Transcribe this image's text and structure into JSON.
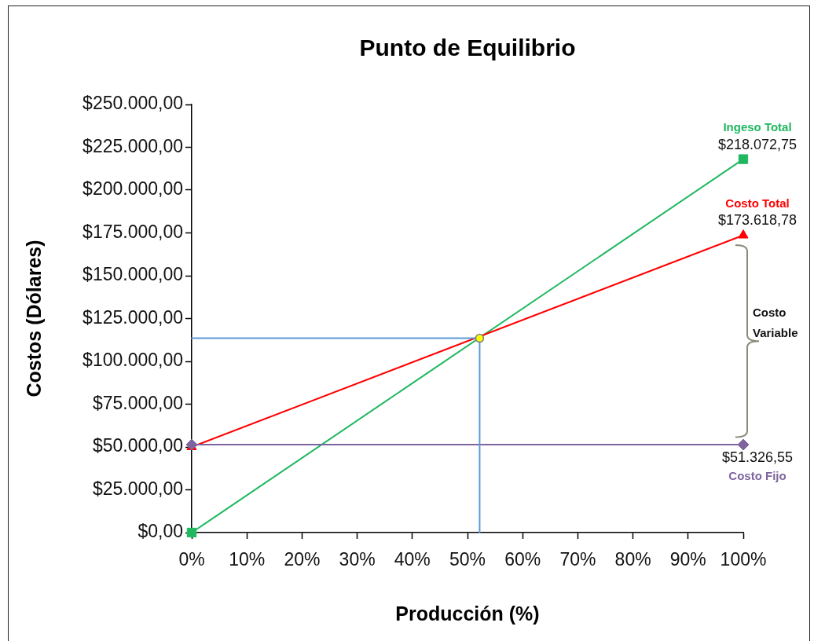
{
  "chart_data": {
    "type": "line",
    "title": "Punto de Equilibrio",
    "xlabel": "Producción (%)",
    "ylabel": "Costos (Dólares)",
    "xlim": [
      0,
      100
    ],
    "xticks": [
      {
        "value": 0,
        "label": "0%"
      },
      {
        "value": 10,
        "label": "10%"
      },
      {
        "value": 20,
        "label": "20%"
      },
      {
        "value": 30,
        "label": "30%"
      },
      {
        "value": 40,
        "label": "40%"
      },
      {
        "value": 50,
        "label": "50%"
      },
      {
        "value": 60,
        "label": "60%"
      },
      {
        "value": 70,
        "label": "70%"
      },
      {
        "value": 80,
        "label": "80%"
      },
      {
        "value": 90,
        "label": "90%"
      },
      {
        "value": 100,
        "label": "100%"
      }
    ],
    "ylim": [
      0,
      250000
    ],
    "yticks": [
      {
        "value": 0,
        "label": "$0,00"
      },
      {
        "value": 25000,
        "label": "$25.000,00"
      },
      {
        "value": 50000,
        "label": "$50.000,00"
      },
      {
        "value": 75000,
        "label": "$75.000,00"
      },
      {
        "value": 100000,
        "label": "$100.000,00"
      },
      {
        "value": 125000,
        "label": "$125.000,00"
      },
      {
        "value": 150000,
        "label": "$150.000,00"
      },
      {
        "value": 175000,
        "label": "$175.000,00"
      },
      {
        "value": 200000,
        "label": "$200.000,00"
      },
      {
        "value": 225000,
        "label": "$225.000,00"
      },
      {
        "value": 250000,
        "label": "$250.000,00"
      }
    ],
    "grid": false,
    "legend": false,
    "series": [
      {
        "name": "Ingeso Total",
        "color": "#1fb860",
        "x": [
          0,
          100
        ],
        "values": [
          0,
          218072.75
        ],
        "marker": "square",
        "value_labels": [
          null,
          "$218.072,75"
        ]
      },
      {
        "name": "Costo Total",
        "color": "#ff0000",
        "x": [
          0,
          100
        ],
        "values": [
          50000,
          173618.78
        ],
        "marker": "triangle",
        "value_labels": [
          null,
          "$173.618,78"
        ]
      },
      {
        "name": "Costo Fijo",
        "color": "#7e649e",
        "x": [
          0,
          100
        ],
        "values": [
          51326.55,
          51326.55
        ],
        "marker": "diamond",
        "value_labels": [
          null,
          "$51.326,55"
        ]
      },
      {
        "color": "#5b9bd5",
        "x": [
          0,
          52.2
        ],
        "values": [
          113500,
          113500
        ],
        "marker": "none"
      },
      {
        "color": "#5b9bd5",
        "x": [
          52.2,
          52.2
        ],
        "values": [
          0,
          113500
        ],
        "marker": "none"
      },
      {
        "type": "scatter",
        "color": "#ffff00",
        "x": [
          52.2
        ],
        "values": [
          113500
        ],
        "marker": "circle"
      }
    ],
    "annotations": [
      "Costo Variable"
    ]
  }
}
